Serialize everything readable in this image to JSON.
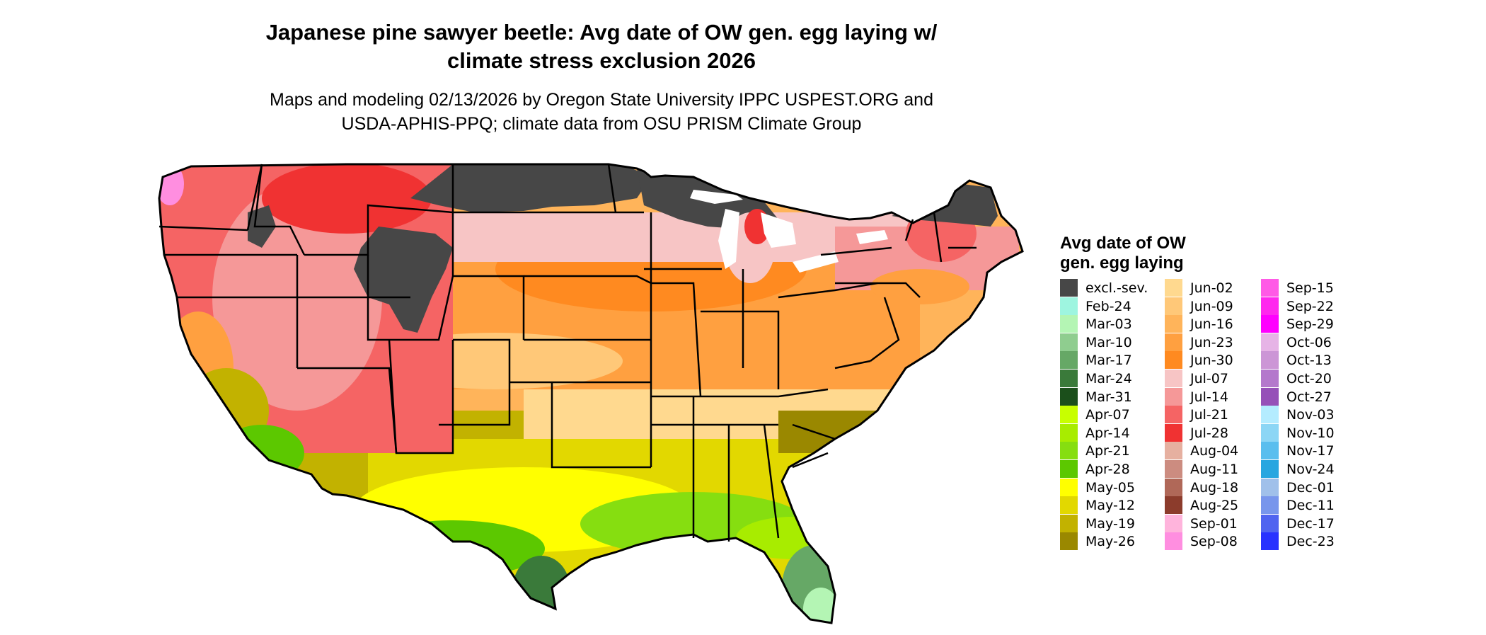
{
  "title_line1": "Japanese pine sawyer beetle: Avg date of OW gen. egg laying w/",
  "title_line2": "climate stress exclusion 2026",
  "subtitle_line1": "Maps and modeling 02/13/2026 by Oregon State University IPPC USPEST.ORG and",
  "subtitle_line2": "USDA-APHIS-PPQ; climate data from OSU PRISM Climate Group",
  "legend": {
    "title_line1": "Avg date of OW",
    "title_line2": "gen. egg laying",
    "columns": [
      [
        {
          "label": "excl.-sev.",
          "color": "#474747"
        },
        {
          "label": "Feb-24",
          "color": "#9ef5e0"
        },
        {
          "label": "Mar-03",
          "color": "#b4f5b4"
        },
        {
          "label": "Mar-10",
          "color": "#8fcd8f"
        },
        {
          "label": "Mar-17",
          "color": "#66a866"
        },
        {
          "label": "Mar-24",
          "color": "#3a7a3a"
        },
        {
          "label": "Mar-31",
          "color": "#1b4f1b"
        },
        {
          "label": "Apr-07",
          "color": "#c8ff00"
        },
        {
          "label": "Apr-14",
          "color": "#a8ec00"
        },
        {
          "label": "Apr-21",
          "color": "#86de10"
        },
        {
          "label": "Apr-28",
          "color": "#5cc800"
        },
        {
          "label": "May-05",
          "color": "#ffff00"
        },
        {
          "label": "May-12",
          "color": "#e2d800"
        },
        {
          "label": "May-19",
          "color": "#c2b200"
        },
        {
          "label": "May-26",
          "color": "#9a8800"
        }
      ],
      [
        {
          "label": "Jun-02",
          "color": "#ffd98f"
        },
        {
          "label": "Jun-09",
          "color": "#ffc878"
        },
        {
          "label": "Jun-16",
          "color": "#ffb45a"
        },
        {
          "label": "Jun-23",
          "color": "#ffa040"
        },
        {
          "label": "Jun-30",
          "color": "#ff8a20"
        },
        {
          "label": "Jul-07",
          "color": "#f7c5c5"
        },
        {
          "label": "Jul-14",
          "color": "#f59898"
        },
        {
          "label": "Jul-21",
          "color": "#f56464"
        },
        {
          "label": "Jul-28",
          "color": "#f03232"
        },
        {
          "label": "Aug-04",
          "color": "#e6b0a0"
        },
        {
          "label": "Aug-11",
          "color": "#cc8c80"
        },
        {
          "label": "Aug-18",
          "color": "#b06858"
        },
        {
          "label": "Aug-25",
          "color": "#8c3c2c"
        },
        {
          "label": "Sep-01",
          "color": "#ffb4dc"
        },
        {
          "label": "Sep-08",
          "color": "#ff8ee0"
        }
      ],
      [
        {
          "label": "Sep-15",
          "color": "#ff5ae6"
        },
        {
          "label": "Sep-22",
          "color": "#ff28ee"
        },
        {
          "label": "Sep-29",
          "color": "#ff00ff"
        },
        {
          "label": "Oct-06",
          "color": "#e6b4e6"
        },
        {
          "label": "Oct-13",
          "color": "#cc96d6"
        },
        {
          "label": "Oct-20",
          "color": "#b478cc"
        },
        {
          "label": "Oct-27",
          "color": "#9650b8"
        },
        {
          "label": "Nov-03",
          "color": "#b4ecff"
        },
        {
          "label": "Nov-10",
          "color": "#8cd6f5"
        },
        {
          "label": "Nov-17",
          "color": "#5abeee"
        },
        {
          "label": "Nov-24",
          "color": "#28a6e0"
        },
        {
          "label": "Dec-01",
          "color": "#a0c0ea"
        },
        {
          "label": "Dec-11",
          "color": "#7896ec"
        },
        {
          "label": "Dec-17",
          "color": "#5064f0"
        },
        {
          "label": "Dec-23",
          "color": "#2832ff"
        }
      ]
    ]
  }
}
